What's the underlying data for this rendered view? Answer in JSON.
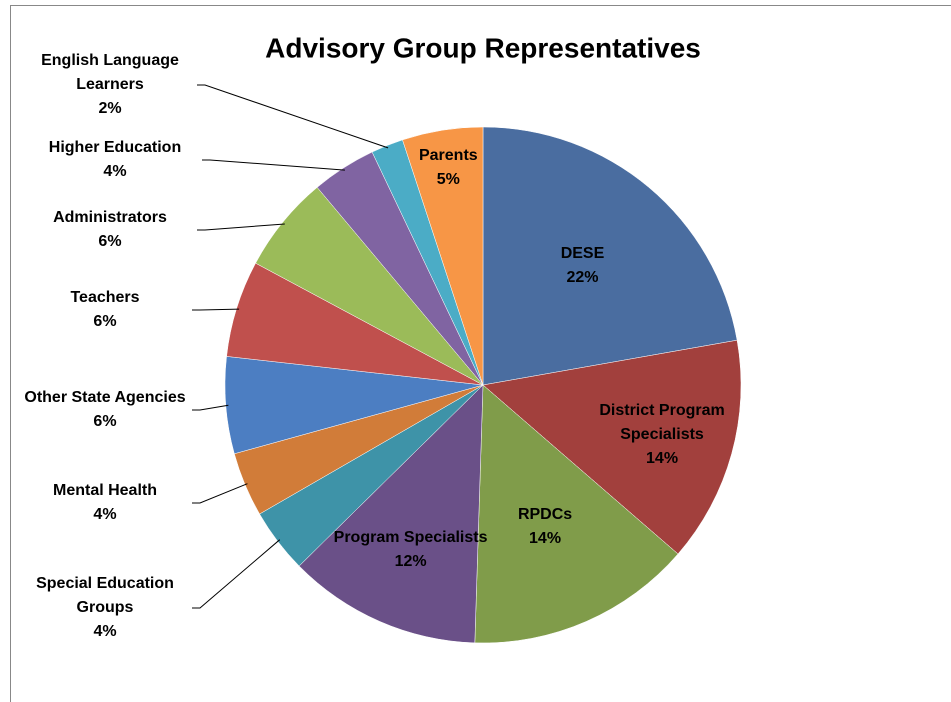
{
  "chart_data": {
    "type": "pie",
    "title": "Advisory Group Representatives",
    "categories": [
      "DESE",
      "District Program Specialists",
      "RPDCs",
      "Program Specialists",
      "Special Education Groups",
      "Mental Health",
      "Other State Agencies",
      "Teachers",
      "Administrators",
      "Higher Education",
      "English Language Learners",
      "Parents"
    ],
    "values": [
      22,
      14,
      14,
      12,
      4,
      4,
      6,
      6,
      6,
      4,
      2,
      5
    ],
    "value_labels": [
      "22%",
      "14%",
      "14%",
      "12%",
      "4%",
      "4%",
      "6%",
      "6%",
      "6%",
      "4%",
      "2%",
      "5%"
    ],
    "colors": [
      "#4a6da0",
      "#a2403d",
      "#809c4a",
      "#6a5088",
      "#3e93a8",
      "#d17c39",
      "#4c7ec2",
      "#c0504d",
      "#9bbb59",
      "#8064a2",
      "#4bacc6",
      "#f79646"
    ]
  }
}
